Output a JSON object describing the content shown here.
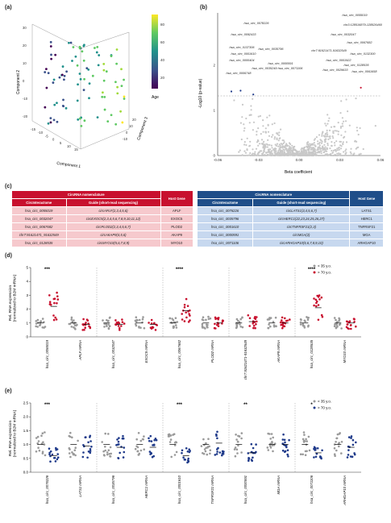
{
  "panel_labels": [
    "(a)",
    "(b)",
    "(c)",
    "(d)",
    "(e)"
  ],
  "panel_a": {
    "axis_labels": {
      "x": "Component 1",
      "y": "Component 2",
      "z": "Component 3"
    },
    "y_ticks": [
      "30",
      "20",
      "10",
      "0",
      "-10",
      "-20"
    ],
    "x_ticks": [
      "-15",
      "-10",
      "-5",
      "0",
      "5",
      "10",
      "15"
    ],
    "z_ticks": [
      "20",
      "10",
      "0",
      "-10"
    ],
    "colorbar": {
      "label": "Age",
      "ticks": [
        "80",
        "60",
        "40",
        "20"
      ]
    }
  },
  "panel_b": {
    "xlabel": "Beta coefficient",
    "ylabel": "-Log10 (p-value)",
    "x_ticks": [
      "-0.06",
      "-0.03",
      "0.00",
      "0.03",
      "0.06"
    ],
    "y_ticks": [
      "0",
      "1",
      "2"
    ],
    "labels_left": [
      "hsa_circ_0078226",
      "hsa_circ_0092433",
      "hsa_circ_0137306",
      "hsa_circ_0001610",
      "hsa_circ_0035796",
      "hsa_circ_0000404",
      "hsa_circ_0000591",
      "hsa_circ_0035249",
      "hsa_circ_0071106",
      "hsa_circ_0006748"
    ],
    "labels_right": [
      "hsa_circ_0055019",
      "hsa_circ_0032047",
      "chr3:128516879-128526460",
      "hsa_circ_0067682",
      "chr7:91621471-91632549",
      "hsa_circ_0132300",
      "hsa_circ_0001922",
      "hsa_circ_0128535",
      "hsa_circ_0029633",
      "hsa_circ_0061658"
    ]
  },
  "panel_c": {
    "red": {
      "title": "CircRNA nomenclature",
      "col1": "CircInteractome",
      "col2": "Guide (short-read sequencing)",
      "col3": "Host Gene",
      "rows": [
        [
          "hsa_circ_0055019",
          "circAPLF(2,3,4,5,6)",
          "APLF"
        ],
        [
          "hsa_circ_0032047",
          "circEXOC5(2,3,4,5,6,7,8,9,10,11,12)",
          "EXOC5"
        ],
        [
          "hsa_circ_0067682",
          "circPLOD2(2,3,4,5,6,7)",
          "PLOD2"
        ],
        [
          "chr7:91621471_91632549",
          "circAKAP9(4,5,6)",
          "AKAP9"
        ],
        [
          "hsa_circ_0128535",
          "circMYO10(5,6,7,8,9)",
          "MYO10"
        ]
      ]
    },
    "blue": {
      "title": "CircRNA nomenclature",
      "col1": "CircInteractome",
      "col2": "Guide (short-read sequencing)",
      "col3": "Host Gene",
      "rows": [
        [
          "hsa_circ_0078226",
          "circLATS1(3,4,5,6,7)",
          "LATS1"
        ],
        [
          "hsa_circ_0035796",
          "circHERC1(22,23,24,25,26,27)",
          "HERC1"
        ],
        [
          "hsa_circ_0001610",
          "circTNFRSF21(2,3)",
          "TNFRSF21"
        ],
        [
          "hsa_circ_0000591",
          "circMGA(2)",
          "MGA"
        ],
        [
          "hsa_circ_0071106",
          "circARHGAP10(5,6,7,8,9,10)",
          "ARHGAP10"
        ]
      ]
    }
  },
  "chart_data": [
    {
      "type": "scatter",
      "panel": "d",
      "ylabel": "Rel. RNA expression (normalized to B2M mRNA)",
      "y_ticks": [
        "0",
        "1",
        "2",
        "3",
        "4",
        "5"
      ],
      "legend": [
        "< 35 y.o.",
        "> 70 y.o."
      ],
      "colors": {
        "young": "#9a9a9a",
        "old": "#c8102e"
      },
      "categories": [
        "hsa_circ_0055019",
        "APLF mRNA",
        "hsa_circ_0032047",
        "EXOC5 mRNA",
        "hsa_circ_0067682",
        "PLOD2 mRNA",
        "chr7:91621471-91632549",
        "AKAP9 mRNA",
        "hsa_circ_0128535",
        "MYO10 mRNA"
      ],
      "significance": [
        "***",
        "",
        "",
        "",
        "****",
        "",
        "",
        "",
        "****",
        ""
      ],
      "series": [
        {
          "name": "< 35 y.o.",
          "values": [
            1.0,
            1.0,
            1.0,
            1.0,
            1.0,
            1.0,
            1.0,
            1.0,
            1.0,
            1.0
          ]
        },
        {
          "name": "> 70 y.o.",
          "values": [
            2.2,
            0.9,
            0.9,
            0.9,
            1.9,
            1.0,
            1.1,
            1.0,
            2.1,
            1.0
          ]
        }
      ]
    },
    {
      "type": "scatter",
      "panel": "e",
      "ylabel": "Rel. RNA expression (normalized to B2M mRNA)",
      "y_ticks": [
        "0.0",
        "0.5",
        "1.0",
        "1.5",
        "2.0",
        "2.5"
      ],
      "legend": [
        "< 35 y.o.",
        "> 70 y.o."
      ],
      "colors": {
        "young": "#9a9a9a",
        "old": "#1f3a8a"
      },
      "categories": [
        "hsa_circ_0078226",
        "LATS1 mRNA",
        "hsa_circ_0035796",
        "HERC1 mRNA",
        "hsa_circ_0001610",
        "TNFRSF21 mRNA",
        "hsa_circ_0000591",
        "MGA mRNA",
        "hsa_circ_0071106",
        "ARHGAP10 mRNA"
      ],
      "significance": [
        "***",
        "",
        "",
        "",
        "***",
        "",
        "**",
        "",
        "*",
        ""
      ],
      "series": [
        {
          "name": "< 35 y.o.",
          "values": [
            1.0,
            1.0,
            1.0,
            1.0,
            1.0,
            1.0,
            1.0,
            1.0,
            1.0,
            1.0
          ]
        },
        {
          "name": "> 70 y.o.",
          "values": [
            0.6,
            0.95,
            0.9,
            0.9,
            0.6,
            1.05,
            0.7,
            1.0,
            0.7,
            0.9
          ]
        }
      ]
    }
  ]
}
